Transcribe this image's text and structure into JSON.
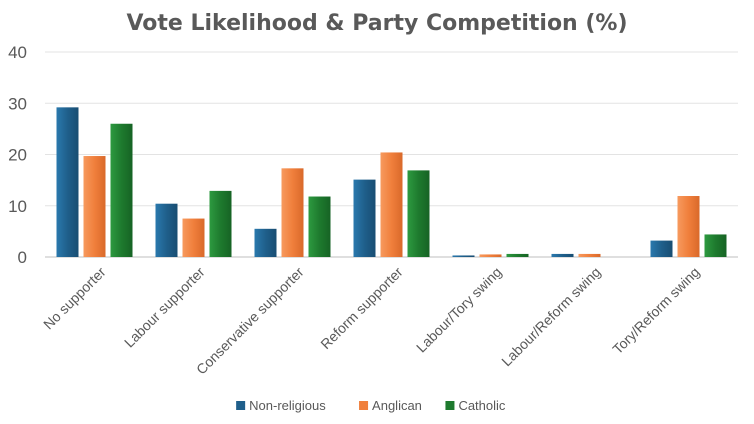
{
  "chart_data": {
    "type": "bar",
    "title": "Vote Likelihood & Party Competition (%)",
    "xlabel": "",
    "ylabel": "",
    "ylim": [
      0,
      40
    ],
    "yticks": [
      0,
      10,
      20,
      30,
      40
    ],
    "grid": true,
    "legend_position": "bottom",
    "categories": [
      "No supporter",
      "Labour supporter",
      "Conservative supporter",
      "Reform supporter",
      "Labour/Tory swing",
      "Labour/Reform swing",
      "Tory/Reform swing"
    ],
    "series": [
      {
        "name": "Non-religious",
        "color": "#1f5f8b",
        "values": [
          29.2,
          10.4,
          5.5,
          15.1,
          0.3,
          0.6,
          3.2
        ]
      },
      {
        "name": "Anglican",
        "color": "#f07f3c",
        "values": [
          19.7,
          7.5,
          17.3,
          20.4,
          0.5,
          0.6,
          11.9
        ]
      },
      {
        "name": "Catholic",
        "color": "#1e7a2e",
        "values": [
          26.0,
          12.9,
          11.8,
          16.9,
          0.6,
          0.0,
          4.4
        ]
      }
    ]
  }
}
